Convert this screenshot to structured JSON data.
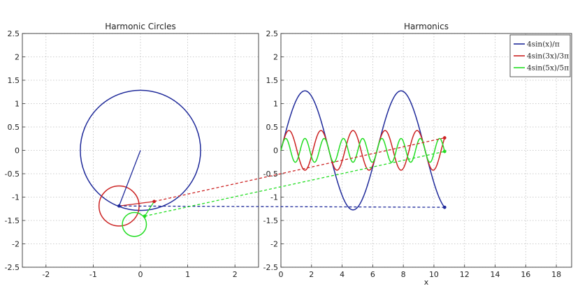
{
  "colors": {
    "harmonic1": "#1f2a9a",
    "harmonic3": "#cc2222",
    "harmonic5": "#22dd22",
    "grid": "#bdbdbd",
    "axes": "#333333"
  },
  "chart_data": [
    {
      "type": "line",
      "title": "Harmonic Circles",
      "xlabel": "",
      "ylabel": "",
      "xlim": [
        -2.5,
        2.5
      ],
      "ylim": [
        -2.5,
        2.5
      ],
      "xticks": [
        -2,
        -1,
        0,
        1,
        2
      ],
      "yticks": [
        -2.5,
        -2,
        -1.5,
        -1,
        -0.5,
        0,
        0.5,
        1,
        1.5,
        2,
        2.5
      ],
      "xtick_labels": [
        "-2",
        "-1",
        "0",
        "1",
        "2"
      ],
      "ytick_labels": [
        "-2.5",
        "-2",
        "-1.5",
        "-1",
        "-0.5",
        "0",
        "0.5",
        "1",
        "1.5",
        "2",
        "2.5"
      ],
      "grid": true,
      "angle_x": 10.7,
      "circles": [
        {
          "harmonic": 1,
          "radius": 1.2732,
          "center": [
            0,
            0
          ],
          "color": "#1f2a9a"
        },
        {
          "harmonic": 3,
          "radius": 0.4244,
          "center": [
            -0.4531,
            -1.1899
          ],
          "color": "#cc2222"
        },
        {
          "harmonic": 5,
          "radius": 0.2546,
          "center": [
            -0.1285,
            -1.5845
          ],
          "color": "#22dd22"
        }
      ],
      "phasor_tips": [
        [
          -0.4531,
          -1.1899
        ],
        [
          0.2902,
          -1.0938
        ],
        [
          0.0898,
          -1.4074
        ]
      ]
    },
    {
      "type": "line",
      "title": "Harmonics",
      "xlabel": "x",
      "ylabel": "",
      "xlim": [
        0,
        19
      ],
      "ylim": [
        -2.5,
        2.5
      ],
      "xticks": [
        0,
        2,
        4,
        6,
        8,
        10,
        12,
        14,
        16,
        18
      ],
      "yticks": [
        -2.5,
        -2,
        -1.5,
        -1,
        -0.5,
        0,
        0.5,
        1,
        1.5,
        2,
        2.5
      ],
      "xtick_labels": [
        "0",
        "2",
        "4",
        "6",
        "8",
        "10",
        "12",
        "14",
        "16",
        "18"
      ],
      "ytick_labels": [
        "-2.5",
        "-2",
        "-1.5",
        "-1",
        "-0.5",
        "0",
        "0.5",
        "1",
        "1.5",
        "2",
        "2.5"
      ],
      "grid": true,
      "x_range": [
        0,
        10.7
      ],
      "legend_position": "top-right",
      "series": [
        {
          "name": "4sin(x)/π",
          "harmonic": 1,
          "amplitude": 1.2732,
          "color": "#1f2a9a"
        },
        {
          "name": "4sin(3x)/3π",
          "harmonic": 3,
          "amplitude": 0.4244,
          "color": "#cc2222"
        },
        {
          "name": "4sin(5x)/5π",
          "harmonic": 5,
          "amplitude": 0.2546,
          "color": "#22dd22"
        }
      ]
    }
  ]
}
